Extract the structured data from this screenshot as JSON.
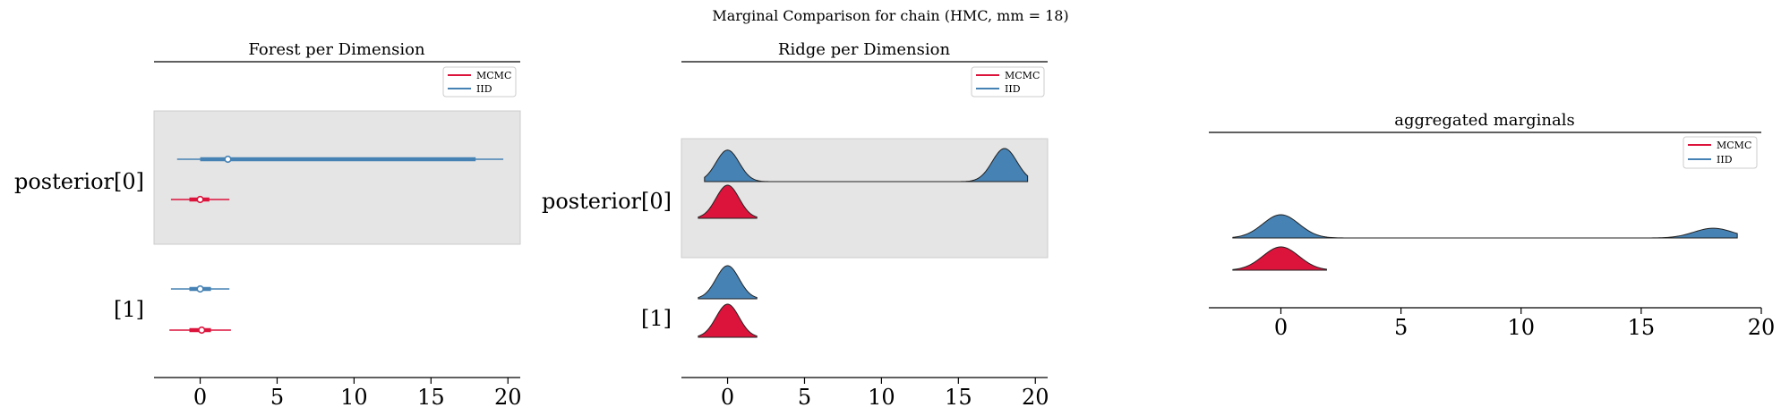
{
  "suptitle": "Marginal Comparison for chain (HMC, mm = 18)",
  "colors": {
    "mcmc": "#DC143C",
    "iid": "#4682B4",
    "band": "#e5e5e5"
  },
  "chart_data": [
    {
      "type": "forest",
      "title": "Forest per Dimension",
      "xlim": [
        -3,
        20.8
      ],
      "xticks": [
        0,
        5,
        10,
        15,
        20
      ],
      "row_labels": [
        "posterior[0]",
        "[1]"
      ],
      "legend": [
        "MCMC",
        "IID"
      ],
      "legend_position": "top-right",
      "series": [
        {
          "name": "IID",
          "rows": [
            {
              "hdi94": [
                -1.5,
                19.7
              ],
              "hdi50": [
                0.0,
                17.9
              ],
              "median": 1.8
            },
            {
              "hdi94": [
                -1.9,
                1.9
              ],
              "hdi50": [
                -0.7,
                0.7
              ],
              "median": 0.0
            }
          ]
        },
        {
          "name": "MCMC",
          "rows": [
            {
              "hdi94": [
                -1.9,
                1.9
              ],
              "hdi50": [
                -0.7,
                0.6
              ],
              "median": 0.0
            },
            {
              "hdi94": [
                -2.0,
                2.0
              ],
              "hdi50": [
                -0.7,
                0.7
              ],
              "median": 0.1
            }
          ]
        }
      ]
    },
    {
      "type": "ridgeline",
      "title": "Ridge per Dimension",
      "xlim": [
        -3,
        20.8
      ],
      "xticks": [
        0,
        5,
        10,
        15,
        20
      ],
      "row_labels": [
        "posterior[0]",
        "[1]"
      ],
      "legend": [
        "MCMC",
        "IID"
      ],
      "legend_position": "top-right",
      "series": [
        {
          "name": "IID",
          "rows": [
            {
              "range": [
                -1.5,
                19.5
              ],
              "modes": [
                {
                  "mu": 0.0,
                  "sd": 0.75,
                  "w": 1.0
                },
                {
                  "mu": 18.0,
                  "sd": 0.8,
                  "w": 1.05
                }
              ]
            },
            {
              "range": [
                -1.9,
                1.9
              ],
              "modes": [
                {
                  "mu": 0.0,
                  "sd": 0.75,
                  "w": 1.0
                }
              ]
            }
          ]
        },
        {
          "name": "MCMC",
          "rows": [
            {
              "range": [
                -1.9,
                1.9
              ],
              "modes": [
                {
                  "mu": 0.0,
                  "sd": 0.75,
                  "w": 1.0
                }
              ]
            },
            {
              "range": [
                -1.9,
                1.9
              ],
              "modes": [
                {
                  "mu": 0.0,
                  "sd": 0.75,
                  "w": 1.0
                }
              ]
            }
          ]
        }
      ]
    },
    {
      "type": "ridgeline",
      "title": "aggregated marginals",
      "xlim": [
        -3,
        20
      ],
      "xticks": [
        0,
        5,
        10,
        15,
        20
      ],
      "row_labels": [],
      "legend": [
        "MCMC",
        "IID"
      ],
      "legend_position": "top-right",
      "series": [
        {
          "name": "IID",
          "range": [
            -2.0,
            19.0
          ],
          "modes": [
            {
              "mu": 0.0,
              "sd": 0.75,
              "w": 1.0
            },
            {
              "mu": 18.0,
              "sd": 0.8,
              "w": 0.42
            }
          ]
        },
        {
          "name": "MCMC",
          "range": [
            -2.0,
            1.9
          ],
          "modes": [
            {
              "mu": 0.0,
              "sd": 0.75,
              "w": 1.0
            }
          ]
        }
      ]
    }
  ]
}
